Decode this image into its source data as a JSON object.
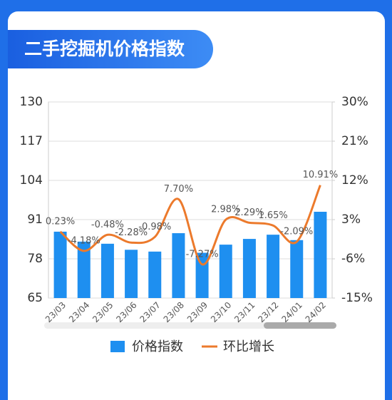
{
  "title": "二手挖掘机价格指数",
  "chart_data": {
    "type": "bar-line",
    "categories": [
      "23/03",
      "23/04",
      "23/05",
      "23/06",
      "23/07",
      "23/08",
      "23/09",
      "23/10",
      "23/11",
      "23/12",
      "24/01",
      "24/02"
    ],
    "series": [
      {
        "name": "价格指数",
        "type": "bar",
        "color": "#1e8ff0",
        "values": [
          87,
          83.7,
          83,
          81,
          80.4,
          86.5,
          80,
          82.7,
          84.6,
          86,
          84.2,
          93.6
        ]
      },
      {
        "name": "环比增长",
        "type": "line",
        "axis": "y2",
        "color": "#ec7a2c",
        "values": [
          0.23,
          -4.18,
          -0.48,
          -2.28,
          -0.98,
          7.7,
          -7.27,
          2.98,
          2.29,
          1.65,
          -2.09,
          10.91
        ],
        "value_labels": [
          "0.23%",
          "-4.18%",
          "-0.48%",
          "-2.28%",
          "-0.98%",
          "7.70%",
          "-7.27%",
          "2.98%",
          "2.29%",
          "1.65%",
          "-2.09%",
          "10.91%"
        ]
      }
    ],
    "ylim": [
      65,
      130
    ],
    "yticks": [
      65,
      78,
      91,
      104,
      117,
      130
    ],
    "y2lim": [
      -15,
      30
    ],
    "y2ticks": [
      {
        "value": -15,
        "label": "-15%"
      },
      {
        "value": -6,
        "label": "-6%"
      },
      {
        "value": 3,
        "label": "3%"
      },
      {
        "value": 12,
        "label": "12%"
      },
      {
        "value": 21,
        "label": "21%"
      },
      {
        "value": 30,
        "label": "30%"
      }
    ],
    "legend": "bottom"
  }
}
